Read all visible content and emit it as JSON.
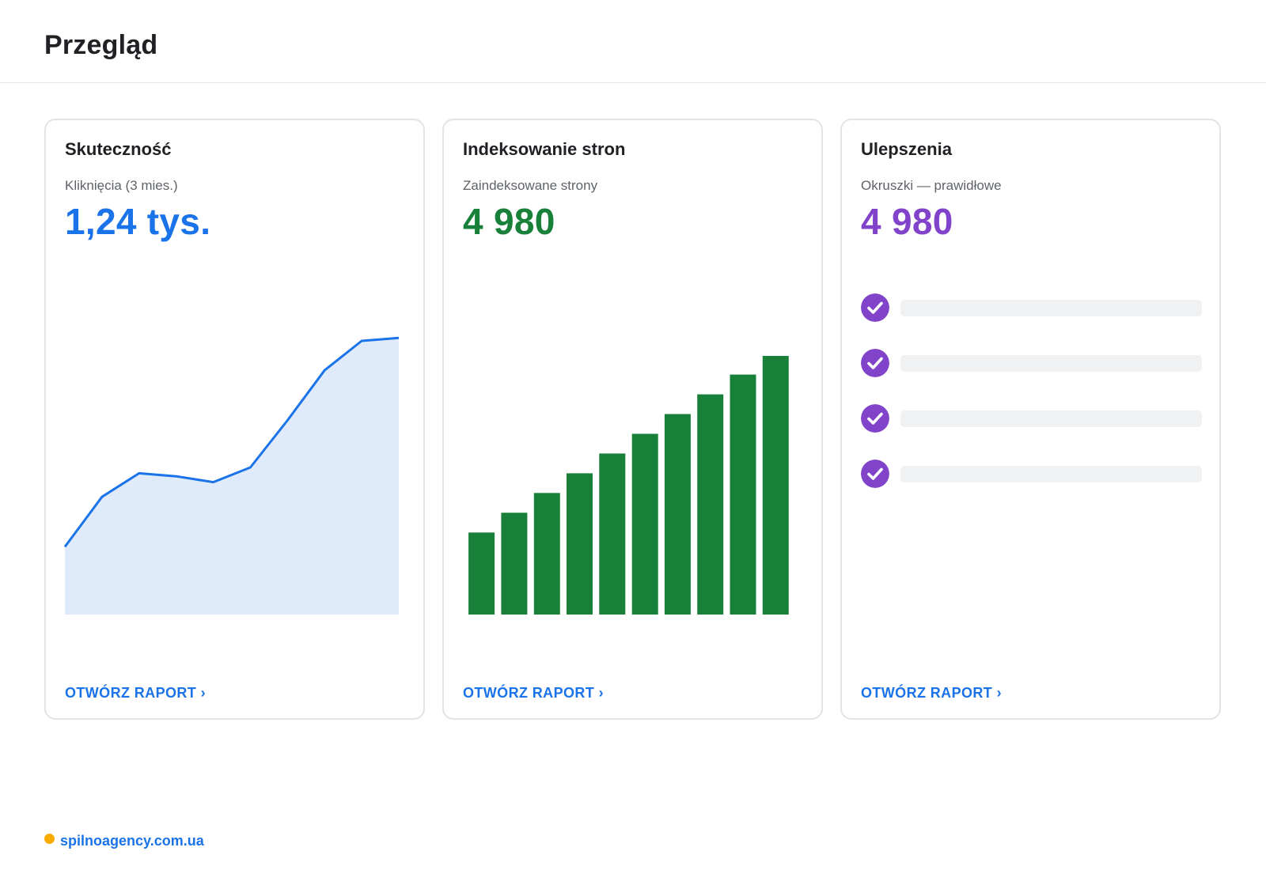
{
  "page": {
    "title": "Przegląd"
  },
  "colors": {
    "blue": "#1a73e8",
    "green": "#188038",
    "purple": "#8043c9",
    "area_fill": "#dfeafb",
    "bar_placeholder": "#f0f1f3",
    "footer_dot": "#f9ab00"
  },
  "cards": [
    {
      "title": "Skuteczność",
      "subtitle": "Kliknięcia (3 mies.)",
      "metric": "1,24 tys.",
      "link_label": "OTWÓRZ RAPORT ›"
    },
    {
      "title": "Indeksowanie stron",
      "subtitle": "Zaindeksowane strony",
      "metric": "4 980",
      "link_label": "OTWÓRZ RAPORT ›"
    },
    {
      "title": "Ulepszenia",
      "subtitle": "Okruszki — prawidłowe",
      "metric": "4 980",
      "link_label": "OTWÓRZ RAPORT ›",
      "checklist": [
        {
          "icon": "check-circle-icon",
          "status": "valid"
        },
        {
          "icon": "check-circle-icon",
          "status": "valid"
        },
        {
          "icon": "check-circle-icon",
          "status": "valid"
        },
        {
          "icon": "check-circle-icon",
          "status": "valid"
        }
      ]
    }
  ],
  "chart_data": [
    {
      "type": "area",
      "title": "",
      "x": [
        1,
        2,
        3,
        4,
        5,
        6,
        7,
        8,
        9,
        10
      ],
      "values": [
        23,
        40,
        48,
        47,
        45,
        50,
        66,
        83,
        93,
        94
      ],
      "ylim": [
        0,
        100
      ],
      "grid": false
    },
    {
      "type": "bar",
      "title": "",
      "categories": [
        "1",
        "2",
        "3",
        "4",
        "5",
        "6",
        "7",
        "8",
        "9",
        "10"
      ],
      "values": [
        1580,
        1960,
        2340,
        2720,
        3100,
        3480,
        3860,
        4240,
        4620,
        4980
      ],
      "ylim": [
        0,
        4980
      ],
      "grid": false
    }
  ],
  "footer": {
    "site": "spilnoagency.com.ua"
  }
}
